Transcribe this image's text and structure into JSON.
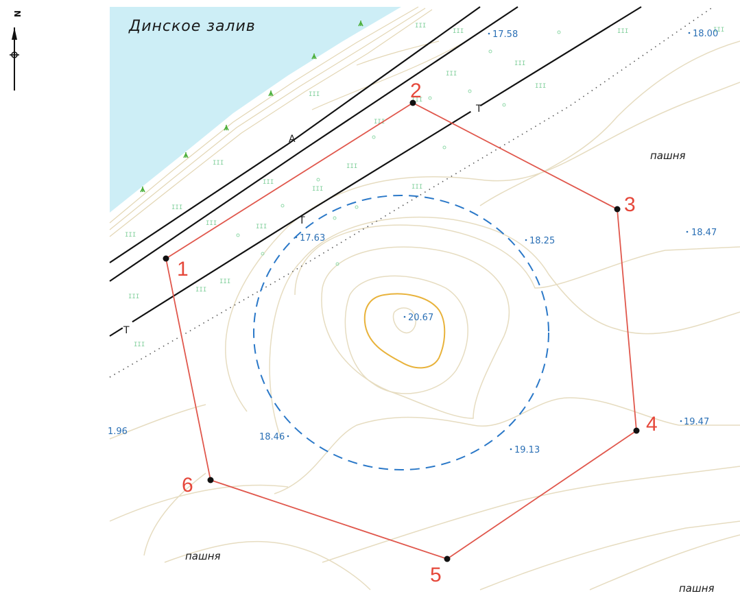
{
  "water_label": "Динское залив",
  "road_label": "А",
  "track_markers": [
    "Т",
    "Т",
    "Т"
  ],
  "land_labels": [
    "пашня",
    "пашня",
    "пашня"
  ],
  "north_label": "N",
  "vertices": [
    {
      "label": "1"
    },
    {
      "label": "2"
    },
    {
      "label": "3"
    },
    {
      "label": "4"
    },
    {
      "label": "5"
    },
    {
      "label": "6"
    }
  ],
  "elevations": [
    "17.58",
    "18.00",
    "18.25",
    "18.47",
    "17.63",
    "20.67",
    "19.47",
    "18.46",
    "19.13",
    "1.96"
  ],
  "colors": {
    "water": "#cdeef6",
    "boundary": "#e0574c",
    "vertex_label": "#e5473a",
    "elevation_text": "#2a6fb5",
    "zone_dashed": "#2a78c8",
    "contour": "#e6dcc0",
    "summit_contour": "#e8b23a",
    "road": "#111111",
    "marsh_symbol": "#7fcf9a",
    "grass_symbol": "#4caf3a"
  }
}
